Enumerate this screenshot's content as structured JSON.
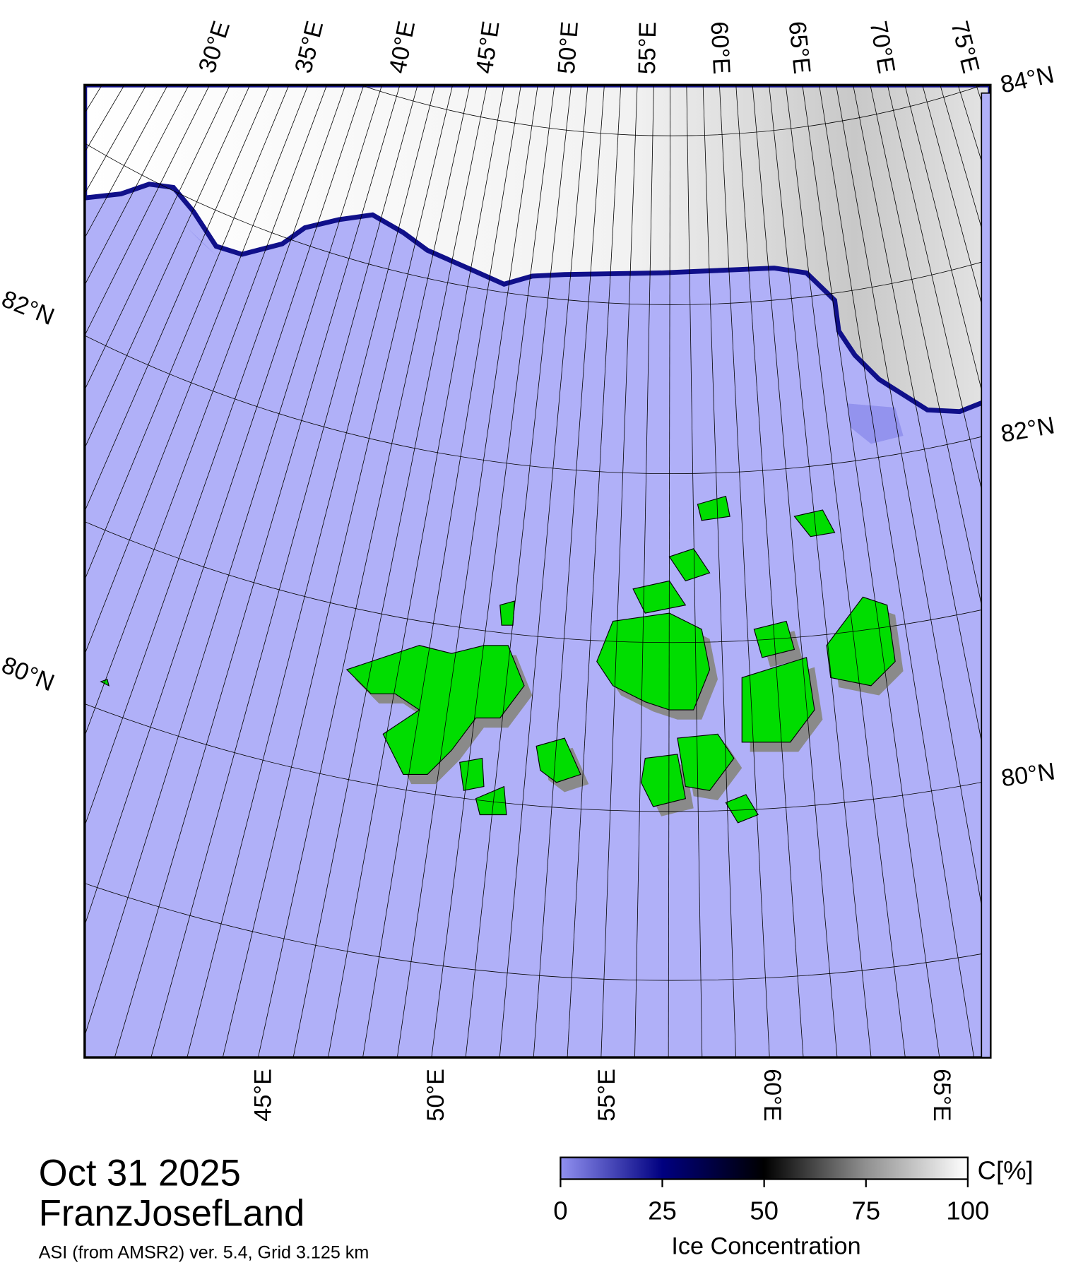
{
  "map": {
    "title": "Oct 31 2025",
    "region": "FranzJosefLand",
    "source": "ASI (from AMSR2) ver. 5.4,  Grid 3.125 km",
    "top_labels": [
      "30°E",
      "35°E",
      "40°E",
      "45°E",
      "50°E",
      "55°E",
      "60°E",
      "65°E",
      "70°E",
      "75°E"
    ],
    "right_labels": [
      "84°N",
      "82°N",
      "80°N"
    ],
    "left_labels": [
      "82°N",
      "80°N"
    ],
    "bottom_labels": [
      "45°E",
      "50°E",
      "55°E",
      "60°E",
      "65°E"
    ],
    "colorbar": {
      "label": "Ice Concentration",
      "unit": "C[%]",
      "lim": [
        0,
        100
      ],
      "ticks": [
        0,
        25,
        50,
        75,
        100
      ]
    }
  }
}
